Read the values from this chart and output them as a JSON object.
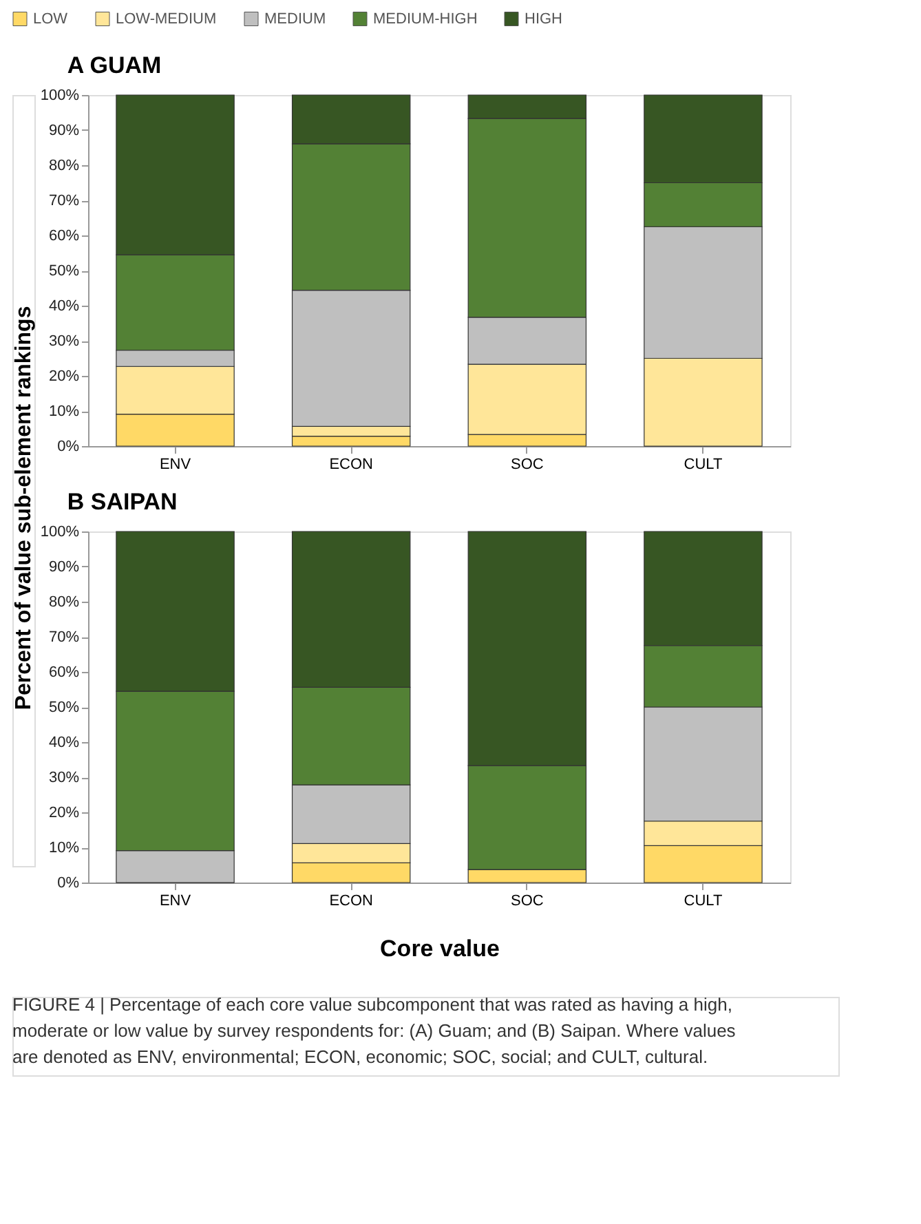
{
  "chart_data": [
    {
      "type": "bar",
      "title": "A GUAM",
      "ylabel": "Percent of value sub-element rankings",
      "stacked": true,
      "legend": "top",
      "grid": false,
      "categories": [
        "ENV",
        "ECON",
        "SOC",
        "CULT"
      ],
      "ylim": [
        0,
        100
      ],
      "yticks": [
        {
          "value": 0,
          "label": "0%"
        },
        {
          "value": 10,
          "label": "10%"
        },
        {
          "value": 20,
          "label": "20%"
        },
        {
          "value": 30,
          "label": "30%"
        },
        {
          "value": 40,
          "label": "40%"
        },
        {
          "value": 50,
          "label": "50%"
        },
        {
          "value": 60,
          "label": "60%"
        },
        {
          "value": 70,
          "label": "70%"
        },
        {
          "value": 80,
          "label": "80%"
        },
        {
          "value": 90,
          "label": "90%"
        },
        {
          "value": 100,
          "label": "100%"
        }
      ],
      "series": [
        {
          "name": "LOW",
          "color": "#ffd966",
          "values": [
            9.1,
            2.8,
            3.3,
            0
          ]
        },
        {
          "name": "LOW-MEDIUM",
          "color": "#ffe699",
          "values": [
            13.6,
            2.8,
            20.0,
            25.0
          ]
        },
        {
          "name": "MEDIUM",
          "color": "#bfbfbf",
          "values": [
            4.6,
            38.8,
            13.4,
            37.5
          ]
        },
        {
          "name": "MEDIUM-HIGH",
          "color": "#538135",
          "values": [
            27.2,
            41.7,
            56.6,
            12.5
          ]
        },
        {
          "name": "HIGH",
          "color": "#375623",
          "values": [
            45.5,
            13.9,
            6.7,
            25.0
          ]
        }
      ]
    },
    {
      "type": "bar",
      "title": "B SAIPAN",
      "xlabel": "Core value",
      "stacked": true,
      "legend": false,
      "grid": false,
      "categories": [
        "ENV",
        "ECON",
        "SOC",
        "CULT"
      ],
      "ylim": [
        0,
        100
      ],
      "yticks": [
        {
          "value": 0,
          "label": "0%"
        },
        {
          "value": 10,
          "label": "10%"
        },
        {
          "value": 20,
          "label": "20%"
        },
        {
          "value": 30,
          "label": "30%"
        },
        {
          "value": 40,
          "label": "40%"
        },
        {
          "value": 50,
          "label": "50%"
        },
        {
          "value": 60,
          "label": "60%"
        },
        {
          "value": 70,
          "label": "70%"
        },
        {
          "value": 80,
          "label": "80%"
        },
        {
          "value": 90,
          "label": "90%"
        },
        {
          "value": 100,
          "label": "100%"
        }
      ],
      "series": [
        {
          "name": "LOW",
          "color": "#ffd966",
          "values": [
            0,
            5.6,
            3.7,
            10.5
          ]
        },
        {
          "name": "LOW-MEDIUM",
          "color": "#ffe699",
          "values": [
            0,
            5.5,
            0,
            7.0
          ]
        },
        {
          "name": "MEDIUM",
          "color": "#bfbfbf",
          "values": [
            9.1,
            16.7,
            0,
            32.5
          ]
        },
        {
          "name": "MEDIUM-HIGH",
          "color": "#538135",
          "values": [
            45.4,
            27.8,
            29.6,
            17.5
          ]
        },
        {
          "name": "HIGH",
          "color": "#375623",
          "values": [
            45.5,
            44.4,
            66.7,
            32.5
          ]
        }
      ],
      "annotations": [
        "FIGURE 4 | Percentage of each core value subcomponent that was rated as having a high, moderate or low value by survey respondents for: (A) Guam; and (B) Saipan. Where values are denoted as ENV, environmental; ECON, economic; SOC, social; and CULT, cultural."
      ]
    }
  ]
}
